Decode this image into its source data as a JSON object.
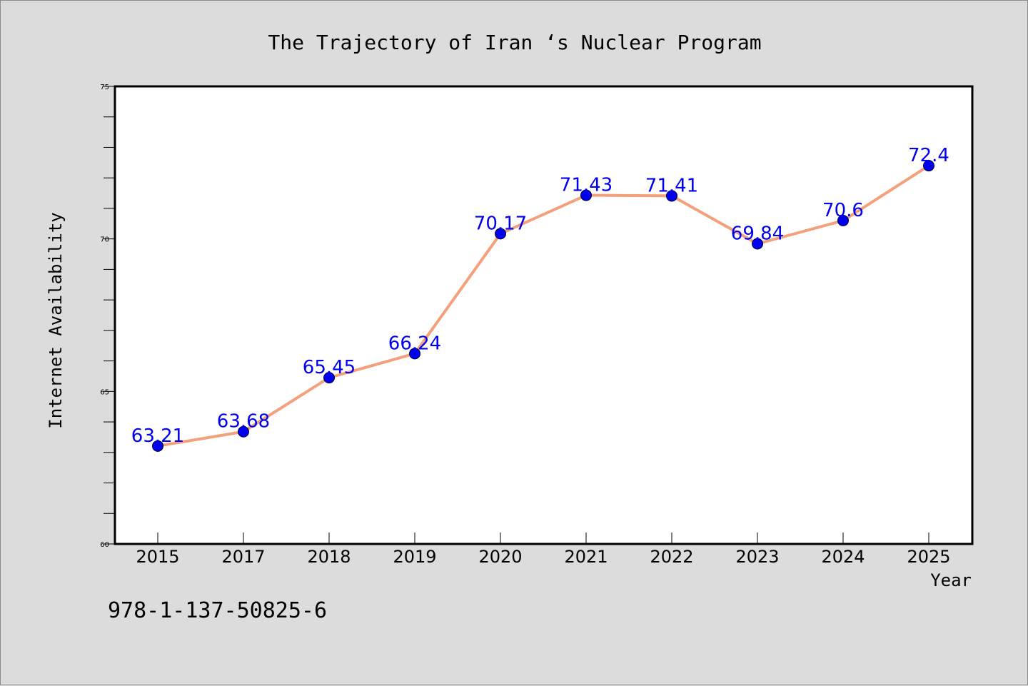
{
  "chart_data": {
    "type": "line",
    "title": "The Trajectory of Iran ‘s Nuclear Program",
    "xlabel": "Year",
    "ylabel": "Internet Availability",
    "categories": [
      "2015",
      "2017",
      "2018",
      "2019",
      "2020",
      "2021",
      "2022",
      "2023",
      "2024",
      "2025"
    ],
    "series": [
      {
        "values": [
          63.21,
          63.68,
          65.45,
          66.24,
          70.17,
          71.43,
          71.41,
          69.84,
          70.6,
          72.4
        ],
        "labels": [
          "63.21",
          "63.68",
          "65.45",
          "66.24",
          "70.17",
          "71.43",
          "71.41",
          "69.84",
          "70.6",
          "72.4"
        ],
        "line_color": "#f4a07c",
        "marker_color": "#0000ee",
        "label_color": "#0000ee"
      }
    ],
    "ylim": [
      60,
      75
    ],
    "yticks": [
      "60",
      "65",
      "70",
      "75"
    ],
    "grid": false,
    "legend": "none"
  },
  "footer": {
    "isbn": "978-1-137-50825-6"
  },
  "colors": {
    "background": "#dcdcdc",
    "plot_background": "#ffffff",
    "axis": "#000000"
  }
}
